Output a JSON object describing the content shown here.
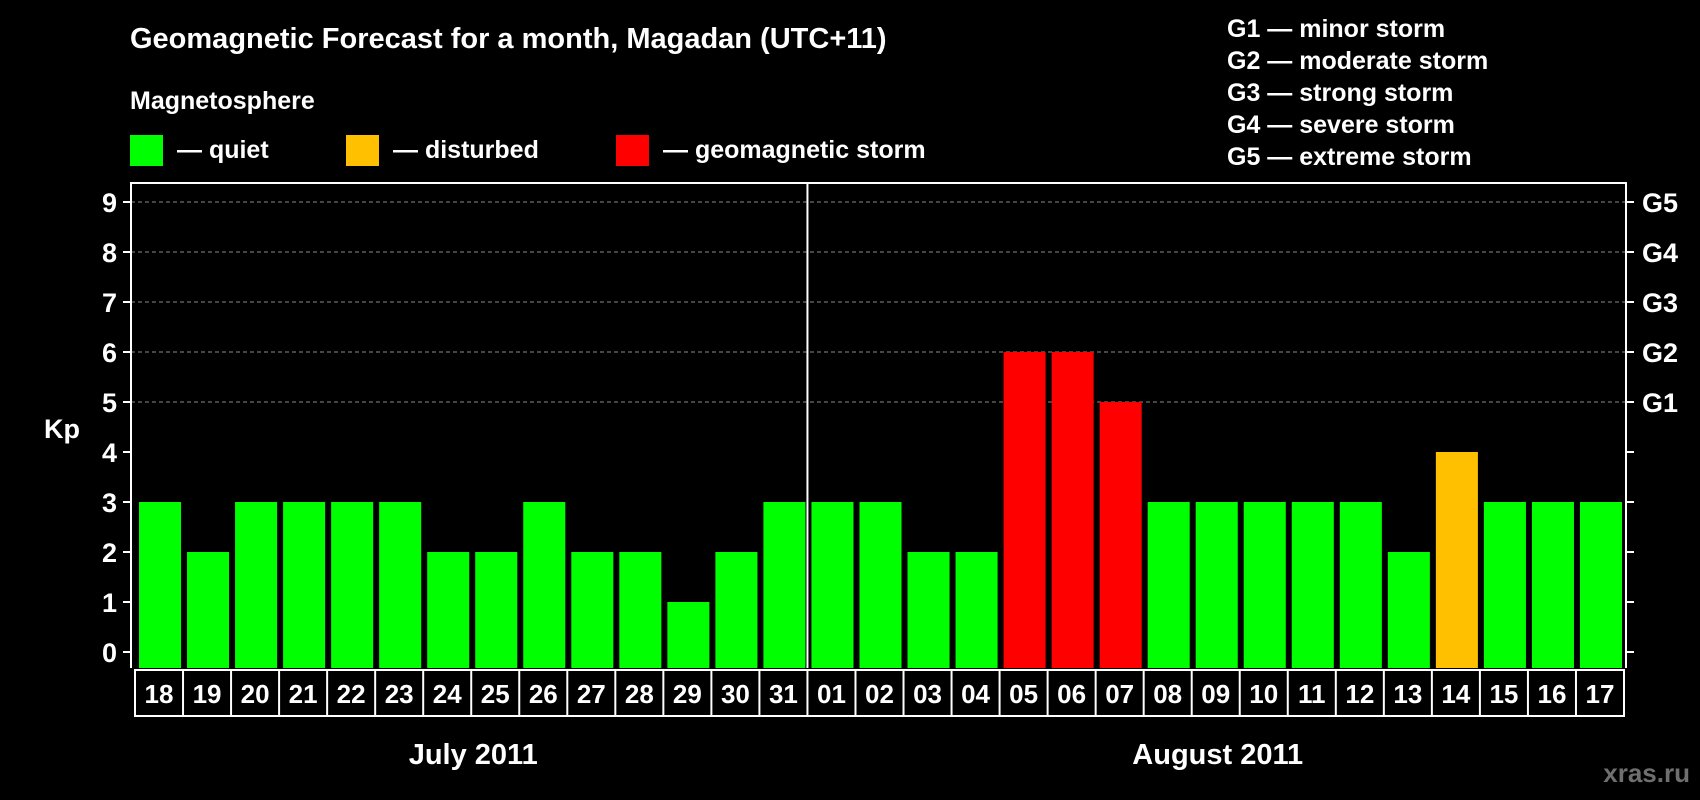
{
  "chart_data": {
    "type": "bar",
    "title": "Geomagnetic Forecast for a month, Magadan (UTC+11)",
    "legend_heading": "Magnetosphere",
    "legend": [
      {
        "label": "— quiet",
        "color": "#00ff00"
      },
      {
        "label": "— disturbed",
        "color": "#ffc000"
      },
      {
        "label": "— geomagnetic storm",
        "color": "#ff0000"
      }
    ],
    "storm_scale": [
      "G1 — minor storm",
      "G2 — moderate storm",
      "G3 — strong storm",
      "G4 — severe storm",
      "G5 — extreme storm"
    ],
    "ylabel": "Kp",
    "ylim": [
      0,
      9
    ],
    "yticks": [
      "0",
      "1",
      "2",
      "3",
      "4",
      "5",
      "6",
      "7",
      "8",
      "9"
    ],
    "right_axis_labels": [
      {
        "kp": 5,
        "label": "G1"
      },
      {
        "kp": 6,
        "label": "G2"
      },
      {
        "kp": 7,
        "label": "G3"
      },
      {
        "kp": 8,
        "label": "G4"
      },
      {
        "kp": 9,
        "label": "G5"
      }
    ],
    "gridlines": [
      5,
      6,
      7,
      8,
      9
    ],
    "categories": [
      "18",
      "19",
      "20",
      "21",
      "22",
      "23",
      "24",
      "25",
      "26",
      "27",
      "28",
      "29",
      "30",
      "31",
      "01",
      "02",
      "03",
      "04",
      "05",
      "06",
      "07",
      "08",
      "09",
      "10",
      "11",
      "12",
      "13",
      "14",
      "15",
      "16",
      "17"
    ],
    "values": [
      3,
      2,
      3,
      3,
      3,
      3,
      2,
      2,
      3,
      2,
      2,
      1,
      2,
      3,
      3,
      3,
      2,
      2,
      6,
      6,
      5,
      3,
      3,
      3,
      3,
      3,
      2,
      4,
      3,
      3,
      3
    ],
    "level": [
      "quiet",
      "quiet",
      "quiet",
      "quiet",
      "quiet",
      "quiet",
      "quiet",
      "quiet",
      "quiet",
      "quiet",
      "quiet",
      "quiet",
      "quiet",
      "quiet",
      "quiet",
      "quiet",
      "quiet",
      "quiet",
      "storm",
      "storm",
      "storm",
      "quiet",
      "quiet",
      "quiet",
      "quiet",
      "quiet",
      "quiet",
      "disturbed",
      "quiet",
      "quiet",
      "quiet"
    ],
    "level_colors": {
      "quiet": "#00ff00",
      "disturbed": "#ffc000",
      "storm": "#ff0000"
    },
    "months": [
      {
        "label": "July 2011",
        "first_index": 0,
        "count": 14
      },
      {
        "label": "August 2011",
        "first_index": 14,
        "count": 17
      }
    ],
    "watermark": "xras.ru"
  }
}
